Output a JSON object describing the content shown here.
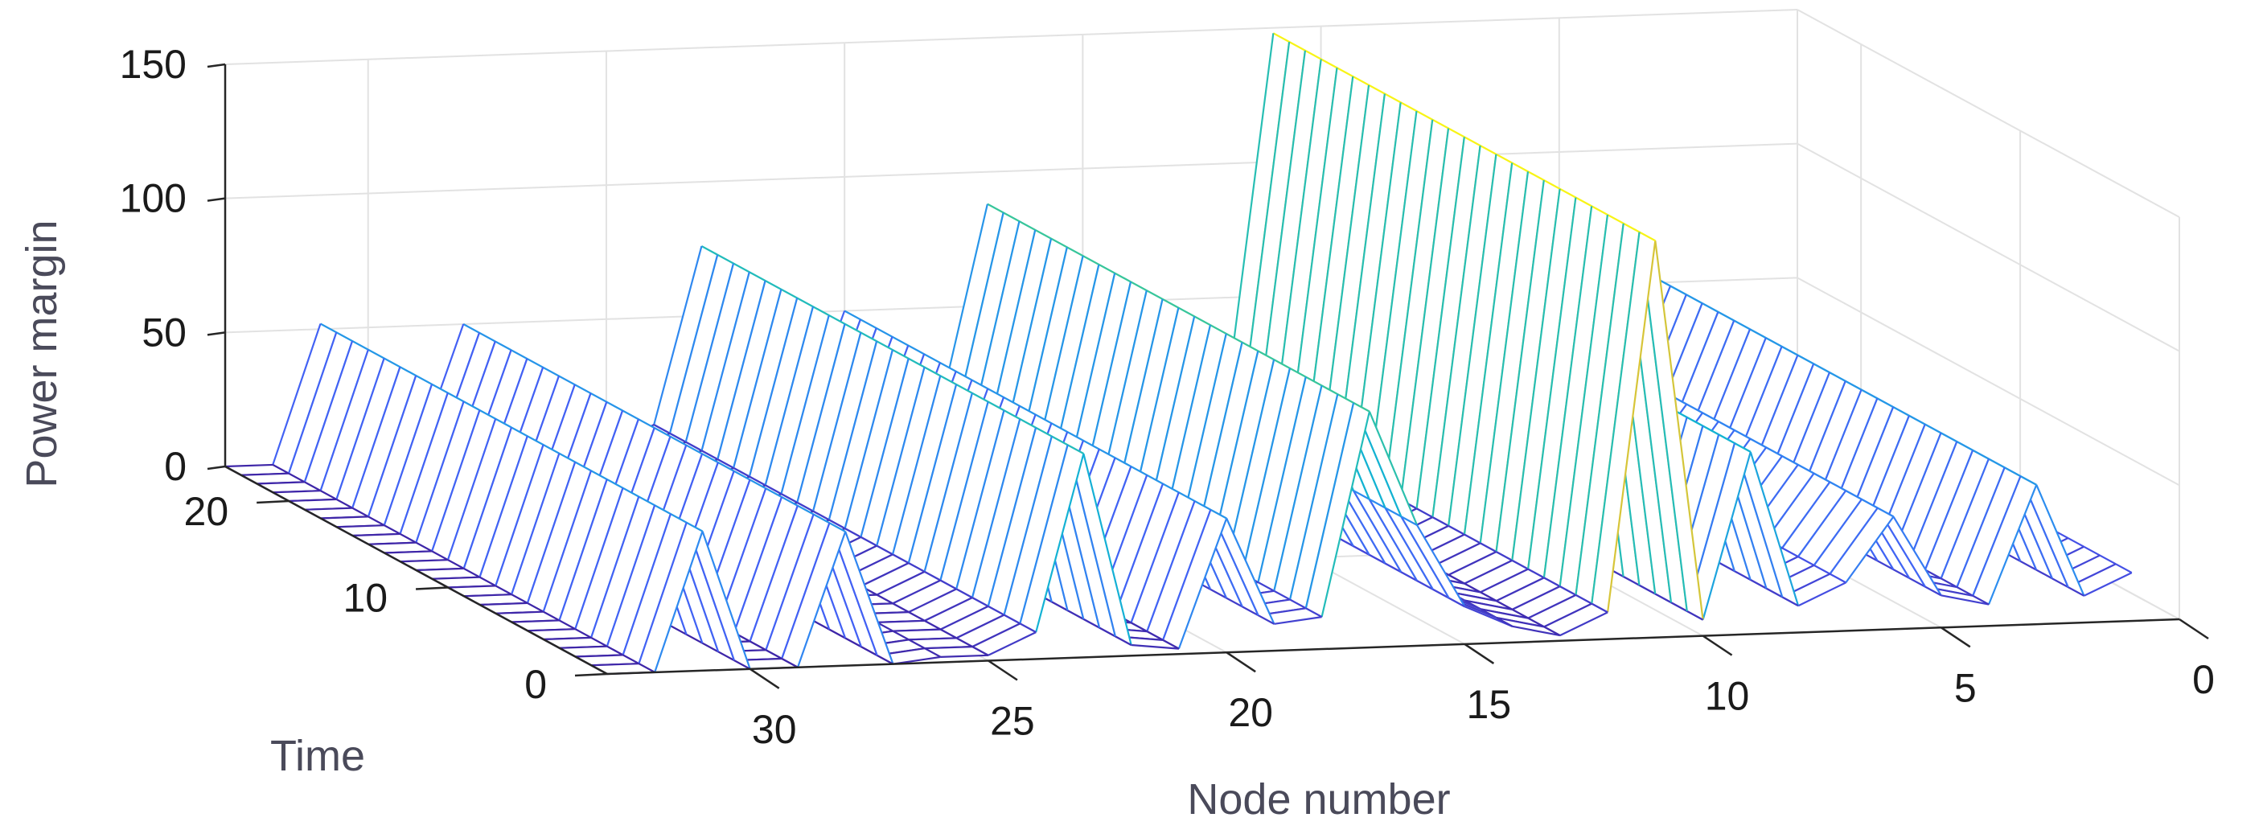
{
  "chart_data": {
    "type": "mesh3d",
    "xlabel": "Node number",
    "ylabel": "Time",
    "zlabel": "Power margin",
    "xlim": [
      0,
      33
    ],
    "ylim": [
      0,
      24
    ],
    "zlim": [
      0,
      150
    ],
    "x_ticks": [
      0,
      5,
      10,
      15,
      20,
      25,
      30
    ],
    "y_ticks": [
      0,
      10,
      20
    ],
    "z_ticks": [
      0,
      50,
      100,
      150
    ],
    "grid": true,
    "colormap": "parula",
    "node_numbers": [
      1,
      2,
      3,
      4,
      5,
      6,
      7,
      8,
      9,
      10,
      11,
      12,
      13,
      14,
      15,
      16,
      17,
      18,
      19,
      20,
      21,
      22,
      23,
      24,
      25,
      26,
      27,
      28,
      29,
      30,
      31,
      32,
      33
    ],
    "time_steps": [
      0,
      1,
      2,
      3,
      4,
      5,
      6,
      7,
      8,
      9,
      10,
      11,
      12,
      13,
      14,
      15,
      16,
      17,
      18,
      19,
      20,
      21,
      22,
      23,
      24
    ],
    "power_margin_by_node": [
      18,
      10,
      52,
      8,
      12,
      42,
      18,
      10,
      68,
      6,
      148,
      10,
      2,
      6,
      14,
      45,
      88,
      12,
      10,
      50,
      2,
      4,
      76,
      10,
      2,
      2,
      0,
      50,
      0,
      0,
      52,
      0,
      0
    ]
  }
}
